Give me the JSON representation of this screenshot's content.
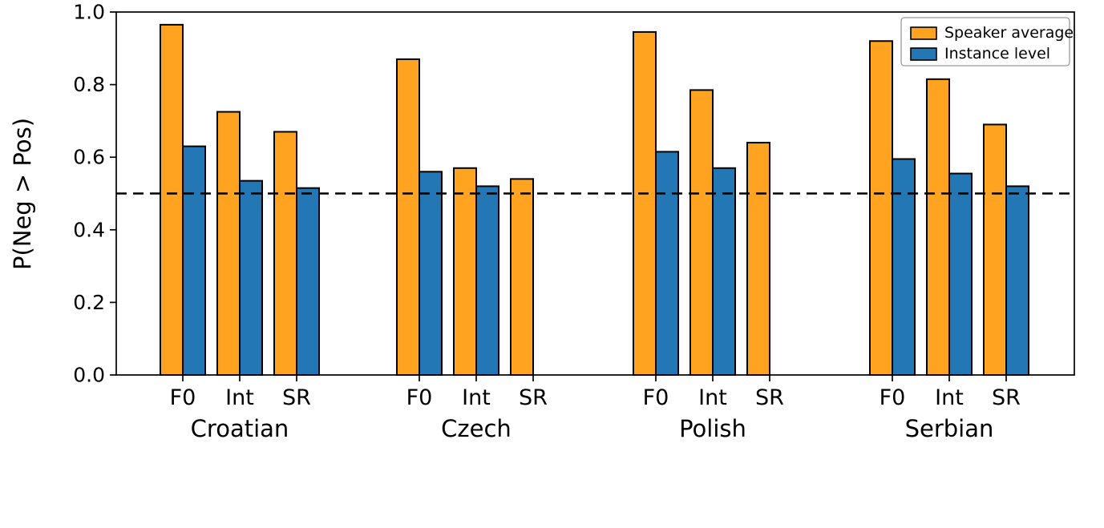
{
  "chart_data": {
    "type": "bar",
    "title": "",
    "xlabel": "",
    "ylabel": "P(Neg > Pos)",
    "ylim": [
      0.0,
      1.0
    ],
    "yticks": [
      0.0,
      0.2,
      0.4,
      0.6,
      0.8,
      1.0
    ],
    "grid": false,
    "groups": [
      "Croatian",
      "Czech",
      "Polish",
      "Serbian"
    ],
    "categories": [
      "F0",
      "Int",
      "SR"
    ],
    "series": [
      {
        "name": "Speaker average",
        "color": "#FFA320",
        "values": [
          [
            0.965,
            0.725,
            0.67
          ],
          [
            0.87,
            0.57,
            0.54
          ],
          [
            0.945,
            0.785,
            0.64
          ],
          [
            0.92,
            0.815,
            0.69
          ]
        ]
      },
      {
        "name": "Instance level",
        "color": "#2277B4",
        "values": [
          [
            0.63,
            0.535,
            0.515
          ],
          [
            0.56,
            0.52,
            0.0
          ],
          [
            0.615,
            0.57,
            0.0
          ],
          [
            0.595,
            0.555,
            0.52
          ]
        ]
      }
    ],
    "reference_line": {
      "y": 0.5,
      "style": "dashed",
      "color": "#000000"
    },
    "legend": {
      "position": "upper right",
      "entries": [
        "Speaker average",
        "Instance level"
      ]
    },
    "bar_edge_color": "#000000"
  }
}
